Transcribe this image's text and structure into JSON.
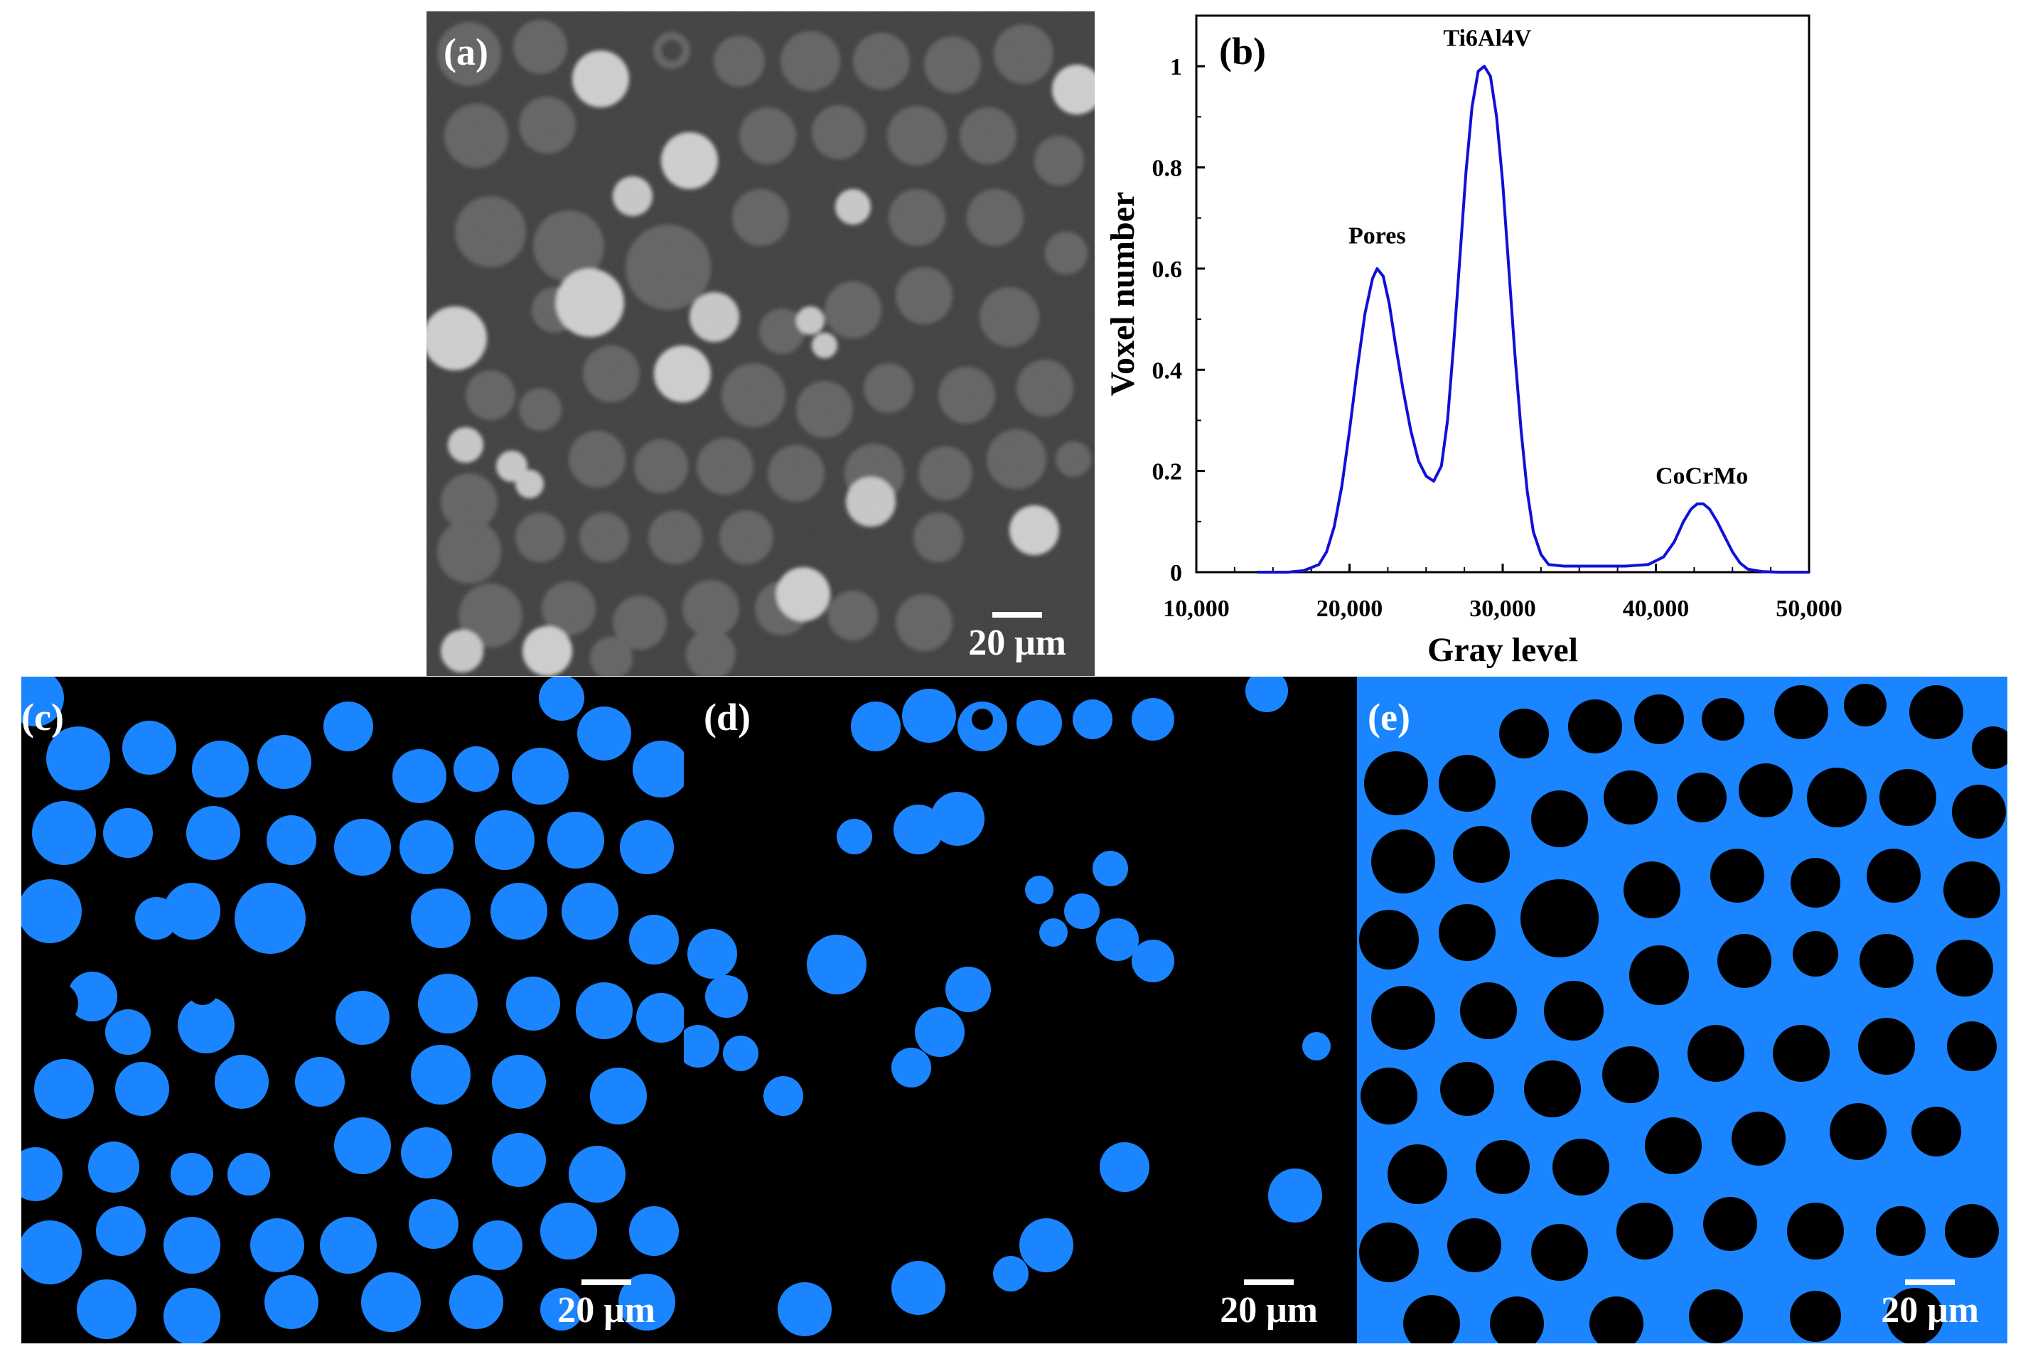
{
  "panels": {
    "a": {
      "label": "(a)",
      "scale": "20 μm"
    },
    "c": {
      "label": "(c)",
      "scale": "20 μm"
    },
    "d": {
      "label": "(d)",
      "scale": "20 μm"
    },
    "e": {
      "label": "(e)",
      "scale": "20 μm"
    }
  },
  "colors": {
    "segment_blue": "#1a85ff",
    "background_black": "#000000",
    "curve": "#1010d8",
    "micrograph_matrix": "#3a3a3a",
    "particle_gray": "#5e5e5e",
    "particle_light": "#c8c8c8"
  },
  "chart_data": {
    "type": "line",
    "panel_label": "(b)",
    "xlabel": "Gray level",
    "ylabel": "Voxel number",
    "xlim": [
      10000,
      50000
    ],
    "ylim": [
      0,
      1.1
    ],
    "xticks": [
      10000,
      20000,
      30000,
      40000,
      50000
    ],
    "xtick_labels": [
      "10,000",
      "20,000",
      "30,000",
      "40,000",
      "50,000"
    ],
    "yticks": [
      0,
      0.2,
      0.4,
      0.6,
      0.8,
      1
    ],
    "ytick_labels": [
      "0",
      "0.2",
      "0.4",
      "0.6",
      "0.8",
      "1"
    ],
    "grid": false,
    "series": [
      {
        "x": [
          14000,
          16000,
          17000,
          18000,
          18500,
          19000,
          19500,
          20000,
          20500,
          21000,
          21500,
          21800,
          22200,
          22600,
          23000,
          23500,
          24000,
          24500,
          25000,
          25500,
          26000,
          26400,
          26800,
          27200,
          27600,
          28000,
          28400,
          28800,
          29200,
          29600,
          30000,
          30400,
          30800,
          31200,
          31600,
          32000,
          32500,
          33000,
          34000,
          36000,
          38000,
          39500,
          40500,
          41200,
          41800,
          42300,
          42700,
          43100,
          43500,
          44000,
          44500,
          45000,
          45500,
          46000,
          47000,
          48000,
          50000
        ],
        "y": [
          0,
          0,
          0.003,
          0.015,
          0.04,
          0.09,
          0.17,
          0.28,
          0.4,
          0.51,
          0.58,
          0.6,
          0.585,
          0.53,
          0.45,
          0.36,
          0.28,
          0.22,
          0.19,
          0.18,
          0.21,
          0.3,
          0.45,
          0.62,
          0.79,
          0.92,
          0.99,
          1.0,
          0.98,
          0.9,
          0.77,
          0.6,
          0.43,
          0.28,
          0.16,
          0.08,
          0.035,
          0.015,
          0.012,
          0.012,
          0.012,
          0.015,
          0.03,
          0.06,
          0.1,
          0.125,
          0.135,
          0.135,
          0.125,
          0.1,
          0.07,
          0.04,
          0.018,
          0.006,
          0.001,
          0,
          0
        ]
      }
    ],
    "annotations": [
      {
        "text": "Pores",
        "x": 21800,
        "y": 0.65
      },
      {
        "text": "Ti6Al4V",
        "x": 29000,
        "y": 1.04
      },
      {
        "text": "CoCrMo",
        "x": 43000,
        "y": 0.175
      }
    ]
  }
}
